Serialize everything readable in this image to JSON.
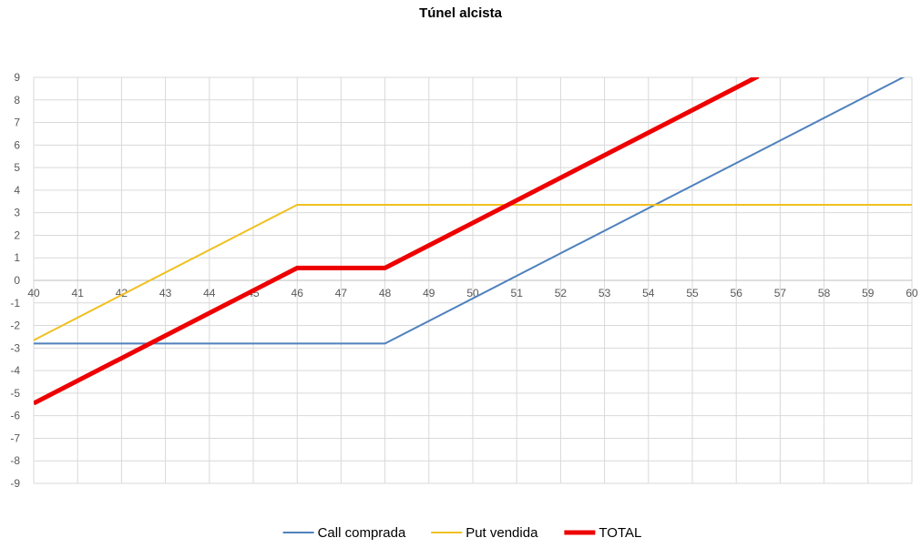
{
  "chart_data": {
    "type": "line",
    "title": "Túnel alcista",
    "xlabel": "",
    "ylabel": "",
    "xlim": [
      40,
      60
    ],
    "ylim": [
      -9,
      9
    ],
    "x_ticks": [
      40,
      41,
      42,
      43,
      44,
      45,
      46,
      47,
      48,
      49,
      50,
      51,
      52,
      53,
      54,
      55,
      56,
      57,
      58,
      59,
      60
    ],
    "y_ticks": [
      -9,
      -8,
      -7,
      -6,
      -5,
      -4,
      -3,
      -2,
      -1,
      0,
      1,
      2,
      3,
      4,
      5,
      6,
      7,
      8,
      9
    ],
    "grid": true,
    "legend_position": "bottom",
    "series": [
      {
        "name": "Call comprada",
        "color": "#4f81bd",
        "width": 2,
        "points": [
          [
            40,
            -2.8
          ],
          [
            48,
            -2.8
          ],
          [
            60,
            9.2
          ]
        ]
      },
      {
        "name": "Put vendida",
        "color": "#f0c020",
        "width": 2,
        "points": [
          [
            40,
            -2.65
          ],
          [
            46,
            3.35
          ],
          [
            60,
            3.35
          ]
        ]
      },
      {
        "name": "TOTAL",
        "color": "#ee0000",
        "width": 5,
        "points": [
          [
            40,
            -5.45
          ],
          [
            46,
            0.55
          ],
          [
            48,
            0.55
          ],
          [
            56.5,
            9.05
          ]
        ]
      }
    ]
  }
}
